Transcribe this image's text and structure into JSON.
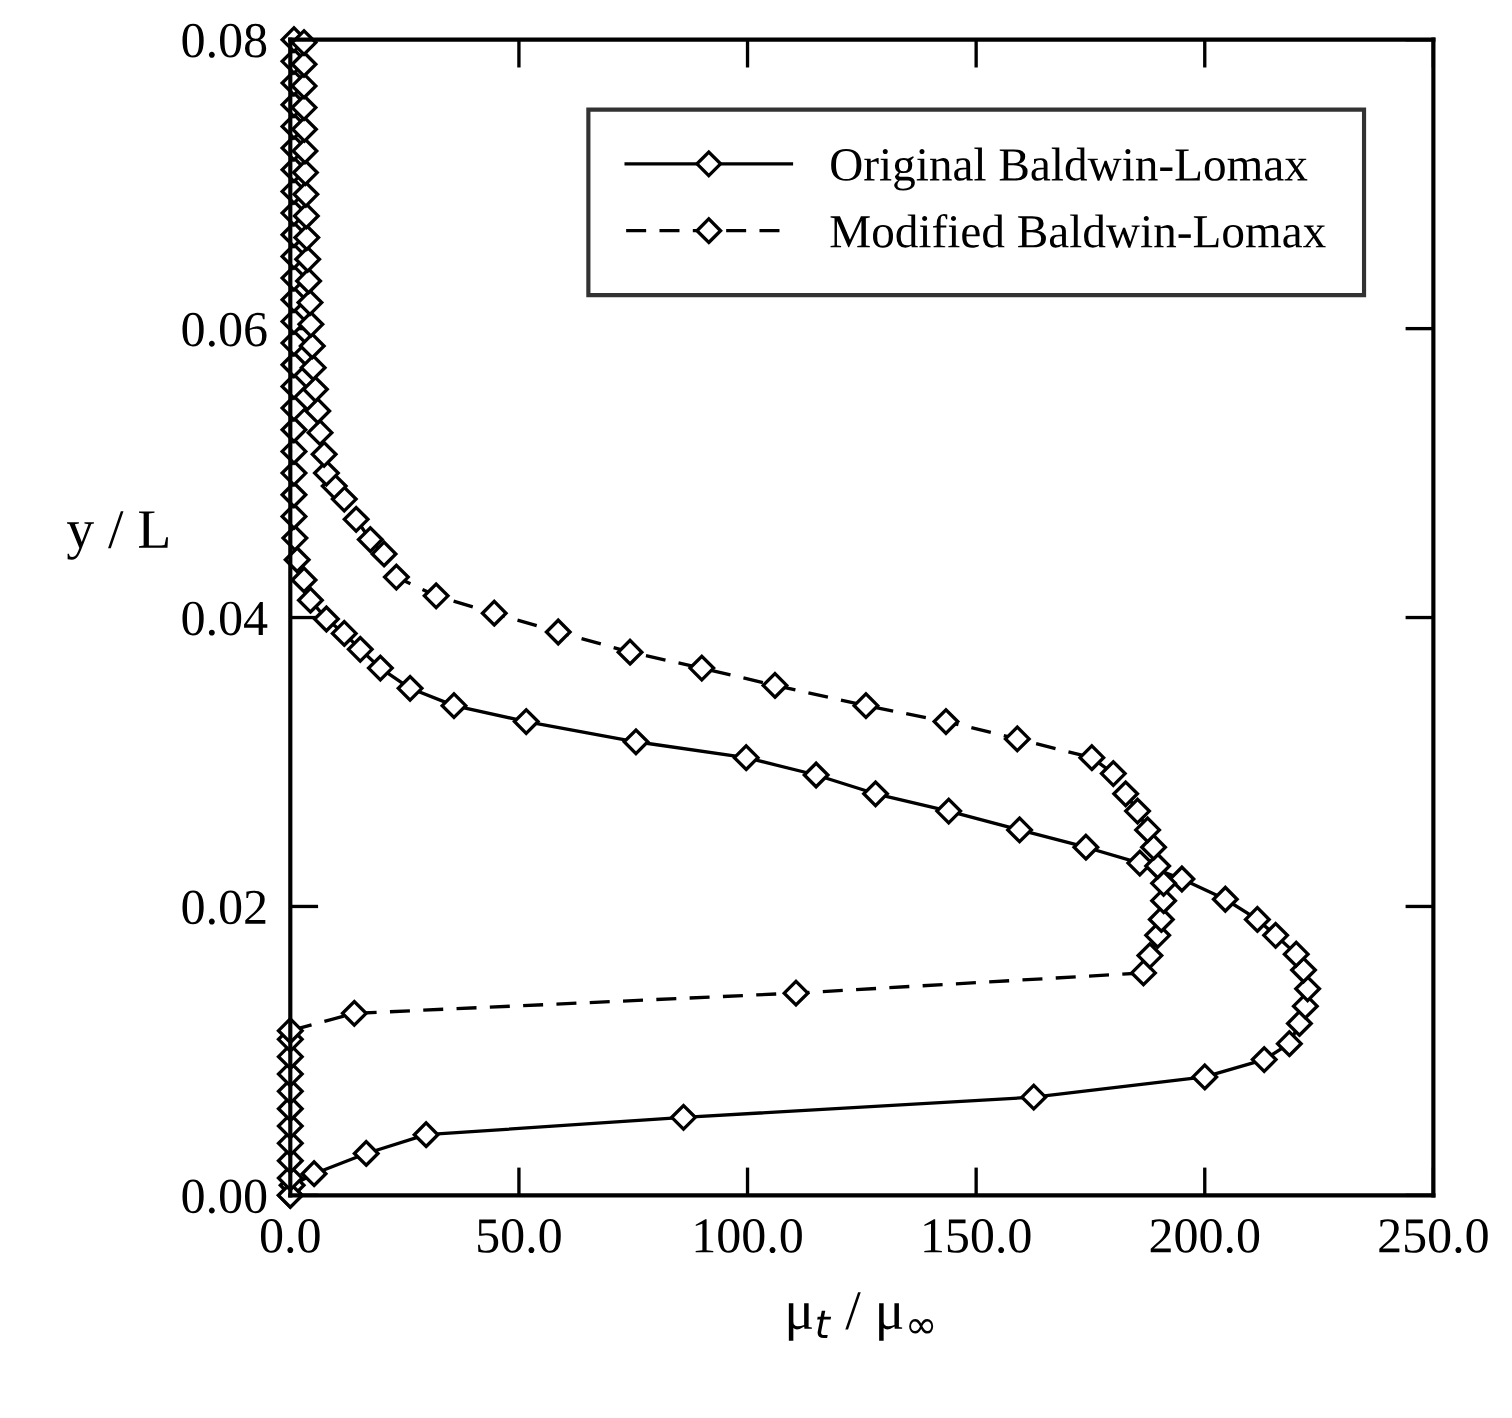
{
  "chart_data": {
    "type": "line",
    "xlabel": "μ$_{t}$ / μ$_{∞}$",
    "ylabel": "y / L",
    "xlim": [
      0,
      250
    ],
    "ylim": [
      0,
      0.08
    ],
    "xticks": [
      {
        "value": 0,
        "label": "0.0"
      },
      {
        "value": 50,
        "label": "50.0"
      },
      {
        "value": 100,
        "label": "100.0"
      },
      {
        "value": 150,
        "label": "150.0"
      },
      {
        "value": 200,
        "label": "200.0"
      },
      {
        "value": 250,
        "label": "250.0"
      }
    ],
    "yticks": [
      {
        "value": 0,
        "label": "0.00"
      },
      {
        "value": 0.02,
        "label": "0.02"
      },
      {
        "value": 0.04,
        "label": "0.04"
      },
      {
        "value": 0.06,
        "label": "0.06"
      },
      {
        "value": 0.08,
        "label": "0.08"
      }
    ],
    "grid": false,
    "legend": "top right",
    "marker": "diamond",
    "series": [
      {
        "name": "Original Baldwin-Lomax",
        "color": "#000000",
        "line_style": "solid",
        "x": [
          0,
          0.4,
          5.2,
          16.6,
          29.7,
          86,
          162.6,
          200,
          213,
          218.5,
          220.7,
          222,
          222.5,
          221.6,
          220,
          215.5,
          211.5,
          204.5,
          195,
          185.8,
          174,
          159.5,
          144,
          128,
          115,
          99.7,
          75.6,
          51.6,
          35.8,
          26.2,
          19.7,
          15.3,
          11.8,
          7.9,
          4.4,
          3,
          1.5,
          1,
          0.8,
          0.8,
          0.8,
          0.8,
          0.8,
          0.8,
          0.8,
          0.8,
          0.8,
          0.8,
          0.8,
          0.8,
          0.8,
          0.8,
          0.8,
          0.8,
          0.8,
          0.8,
          0.8,
          0.8,
          0.8,
          0.8,
          0.8
        ],
        "values": [
          0,
          0.0007,
          0.0015,
          0.0029,
          0.0042,
          0.0054,
          0.0068,
          0.0082,
          0.0094,
          0.0105,
          0.0119,
          0.0131,
          0.0143,
          0.0156,
          0.0167,
          0.018,
          0.0191,
          0.0205,
          0.0219,
          0.023,
          0.0241,
          0.0253,
          0.0266,
          0.0278,
          0.0291,
          0.0303,
          0.0314,
          0.0328,
          0.0339,
          0.0351,
          0.0365,
          0.0378,
          0.0389,
          0.0399,
          0.0412,
          0.0426,
          0.044,
          0.0455,
          0.047,
          0.0485,
          0.05,
          0.0515,
          0.053,
          0.0545,
          0.056,
          0.0575,
          0.059,
          0.0605,
          0.062,
          0.0635,
          0.065,
          0.0665,
          0.068,
          0.0695,
          0.071,
          0.0725,
          0.074,
          0.0755,
          0.077,
          0.0785,
          0.08
        ]
      },
      {
        "name": "Modified Baldwin-Lomax",
        "color": "#000000",
        "line_style": "dashed",
        "x": [
          0,
          0,
          0,
          0,
          0,
          0,
          0,
          0,
          0,
          0,
          0,
          14,
          110.6,
          186.6,
          188,
          189.7,
          190.5,
          191,
          191,
          189.7,
          188.8,
          187.5,
          185.3,
          182.7,
          180,
          175.3,
          159,
          143.4,
          125.9,
          106,
          90,
          74.3,
          58.6,
          44.6,
          31.9,
          23.2,
          20.5,
          17.5,
          14.4,
          11.8,
          9.6,
          7.9,
          7.4,
          6.5,
          6,
          5.5,
          5,
          4.8,
          4.5,
          4.3,
          4,
          3.8,
          3.6,
          3.5,
          3.4,
          3.3,
          3.2,
          3.1,
          3,
          3,
          3,
          3
        ],
        "values": [
          0,
          0.0012,
          0.0024,
          0.0036,
          0.0048,
          0.006,
          0.0072,
          0.0084,
          0.0096,
          0.0108,
          0.0114,
          0.0126,
          0.014,
          0.0154,
          0.0166,
          0.018,
          0.0191,
          0.0204,
          0.0216,
          0.0228,
          0.0241,
          0.0253,
          0.0266,
          0.0278,
          0.0292,
          0.0303,
          0.0316,
          0.0328,
          0.0339,
          0.0353,
          0.0365,
          0.0376,
          0.039,
          0.0403,
          0.0415,
          0.0428,
          0.0444,
          0.0454,
          0.0468,
          0.0482,
          0.0491,
          0.05,
          0.0513,
          0.0528,
          0.0543,
          0.0558,
          0.0573,
          0.0588,
          0.0603,
          0.0618,
          0.0633,
          0.0648,
          0.0663,
          0.0678,
          0.0693,
          0.0708,
          0.0723,
          0.0738,
          0.0753,
          0.0768,
          0.0783,
          0.0798
        ]
      }
    ]
  }
}
